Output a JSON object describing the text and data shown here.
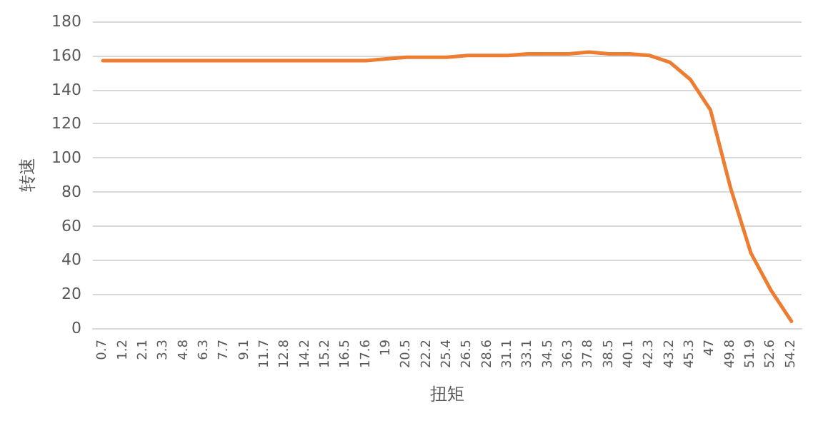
{
  "chart_data": {
    "type": "line",
    "xlabel": "扭矩",
    "ylabel": "转速",
    "categories": [
      "0.7",
      "1.2",
      "2.1",
      "3.3",
      "4.8",
      "6.3",
      "7.7",
      "9.1",
      "11.7",
      "12.8",
      "14.2",
      "15.2",
      "16.5",
      "17.6",
      "19",
      "20.5",
      "22.2",
      "25.4",
      "26.5",
      "28.6",
      "31.1",
      "33.1",
      "34.5",
      "36.3",
      "37.8",
      "38.5",
      "40.1",
      "42.3",
      "43.2",
      "45.3",
      "47",
      "49.8",
      "51.9",
      "52.6",
      "54.2"
    ],
    "series": [
      {
        "color": "#ed7d31",
        "values": [
          157,
          157,
          157,
          157,
          157,
          157,
          157,
          157,
          157,
          157,
          157,
          157,
          157,
          157,
          158,
          159,
          159,
          159,
          160,
          160,
          160,
          161,
          161,
          161,
          162,
          161,
          161,
          160,
          156,
          146,
          128,
          82,
          44,
          22,
          4
        ]
      }
    ],
    "ylim": [
      0,
      180
    ],
    "yticks": [
      0,
      20,
      40,
      60,
      80,
      100,
      120,
      140,
      160,
      180
    ],
    "grid": "y",
    "marker": "none",
    "line_style": "solid"
  }
}
